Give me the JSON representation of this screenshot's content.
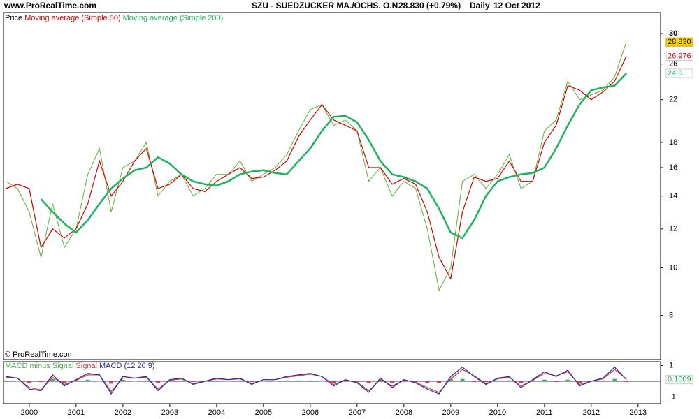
{
  "header": {
    "site": "www.ProRealTime.com",
    "symbol": "SZU - SUEDZUCKER MA./OCHS. O.N.",
    "quote": "28.830 (+0.79%)",
    "period": "Daily",
    "date": "12 Oct 2012",
    "watermark": "© ProRealTime.com"
  },
  "chart_data": [
    {
      "type": "line",
      "log_scale": true,
      "grid": false,
      "x": [
        1999.5,
        1999.75,
        2000,
        2000.25,
        2000.5,
        2000.75,
        2001,
        2001.25,
        2001.5,
        2001.75,
        2002,
        2002.25,
        2002.5,
        2002.75,
        2003,
        2003.25,
        2003.5,
        2003.75,
        2004,
        2004.25,
        2004.5,
        2004.75,
        2005,
        2005.25,
        2005.5,
        2005.75,
        2006,
        2006.25,
        2006.5,
        2006.75,
        2007,
        2007.25,
        2007.5,
        2007.75,
        2008,
        2008.25,
        2008.5,
        2008.75,
        2009,
        2009.25,
        2009.5,
        2009.75,
        2010,
        2010.25,
        2010.5,
        2010.75,
        2011,
        2011.25,
        2011.5,
        2011.75,
        2012,
        2012.25,
        2012.5,
        2012.75
      ],
      "xlim": [
        1999.45,
        2013.48
      ],
      "xticks": [
        2000,
        2001,
        2002,
        2003,
        2004,
        2005,
        2006,
        2007,
        2008,
        2009,
        2010,
        2011,
        2012,
        2013
      ],
      "ylim": [
        6.5,
        33.1
      ],
      "yticks": [
        8,
        10,
        12,
        14,
        16,
        18,
        22,
        26,
        30
      ],
      "series": [
        {
          "name": "Price",
          "color": "#5fae3a",
          "width": 1,
          "last_label": "28.830",
          "values": [
            15,
            14.5,
            13,
            10.5,
            13.5,
            11,
            12,
            15.5,
            17.5,
            13,
            16,
            16.5,
            18,
            14,
            15,
            15.5,
            14,
            14.5,
            15.5,
            15.5,
            16.5,
            15,
            15.5,
            16,
            17,
            19,
            21,
            21.5,
            19.5,
            20,
            19,
            15,
            16,
            14,
            15,
            14.5,
            12,
            9,
            10,
            15,
            15.5,
            14.5,
            15.5,
            17,
            14.5,
            15,
            19,
            20,
            24,
            22,
            22.5,
            23,
            24.5,
            28.83
          ]
        },
        {
          "name": "Moving average (Simple 50)",
          "color": "#d40000",
          "width": 1.2,
          "values": [
            14.5,
            14.8,
            14.5,
            11,
            12,
            11.5,
            12,
            13.5,
            16.5,
            14,
            15,
            16.5,
            17.5,
            14.5,
            14.8,
            15.5,
            14.5,
            14.3,
            15,
            15.5,
            16,
            15.2,
            15.3,
            15.8,
            16.5,
            18.5,
            20,
            21.5,
            20,
            19.5,
            19,
            16,
            16,
            14.8,
            15.2,
            14.8,
            13,
            10.5,
            9.5,
            13,
            15.3,
            15,
            15.2,
            16.5,
            15,
            15,
            18,
            19.5,
            23.5,
            23,
            22,
            22.8,
            24,
            26.976
          ]
        },
        {
          "name": "Moving average (Simple 200)",
          "color": "#1db35e",
          "width": 2.5,
          "values": [
            null,
            null,
            null,
            13.8,
            13,
            12.3,
            11.8,
            12.5,
            13.5,
            14.5,
            15.2,
            15.8,
            16,
            16.8,
            16.3,
            15.5,
            15,
            14.8,
            14.7,
            15,
            15.5,
            15.7,
            15.8,
            15.6,
            15.5,
            16.5,
            17.5,
            19,
            20.3,
            20.4,
            19.8,
            18.2,
            16.5,
            15.5,
            15.3,
            15,
            14.5,
            13.2,
            11.8,
            11.5,
            12.5,
            14,
            15,
            15.3,
            15.5,
            15.6,
            16,
            17.5,
            19.5,
            21.5,
            23,
            23.3,
            23.5,
            24.9
          ]
        }
      ]
    },
    {
      "type": "line",
      "log_scale": false,
      "x": [
        1999.5,
        1999.75,
        2000,
        2000.25,
        2000.5,
        2000.75,
        2001,
        2001.25,
        2001.5,
        2001.75,
        2002,
        2002.25,
        2002.5,
        2002.75,
        2003,
        2003.25,
        2003.5,
        2003.75,
        2004,
        2004.25,
        2004.5,
        2004.75,
        2005,
        2005.25,
        2005.5,
        2005.75,
        2006,
        2006.25,
        2006.5,
        2006.75,
        2007,
        2007.25,
        2007.5,
        2007.75,
        2008,
        2008.25,
        2008.5,
        2008.75,
        2009,
        2009.25,
        2009.5,
        2009.75,
        2010,
        2010.25,
        2010.5,
        2010.75,
        2011,
        2011.25,
        2011.5,
        2011.75,
        2012,
        2012.25,
        2012.5,
        2012.75
      ],
      "xlim": [
        1999.45,
        2013.48
      ],
      "ylim": [
        -1.42,
        1.24
      ],
      "yticks": [
        1,
        -1
      ],
      "series": [
        {
          "name": "MACD minus Signal",
          "color": "#4caf50",
          "style": "bar",
          "values": [
            0.05,
            0,
            -0.1,
            -0.05,
            0.15,
            -0.1,
            0.05,
            0.1,
            0,
            -0.15,
            0.1,
            0,
            0.05,
            -0.1,
            0.05,
            0.05,
            -0.05,
            0,
            0.05,
            0,
            0.05,
            -0.05,
            0,
            0,
            0.05,
            0.05,
            0.05,
            0,
            -0.1,
            0.05,
            -0.05,
            -0.1,
            0.1,
            -0.1,
            0.05,
            -0.05,
            -0.1,
            -0.1,
            0.15,
            0.15,
            -0.05,
            -0.05,
            0.05,
            0.05,
            -0.1,
            0.05,
            0.1,
            -0.05,
            0.1,
            -0.1,
            0,
            0.05,
            0.15,
            -0.05
          ]
        },
        {
          "name": "Signal",
          "color": "#d04040",
          "style": "line",
          "values": [
            0.25,
            0.2,
            -0.4,
            -0.55,
            0.25,
            -0.2,
            0.05,
            0.4,
            0.4,
            -0.65,
            0.2,
            0.2,
            0.25,
            -0.5,
            0.05,
            0.15,
            -0.15,
            0,
            0.15,
            0.1,
            0.15,
            -0.15,
            0.1,
            0.1,
            0.25,
            0.35,
            0.45,
            0.3,
            -0.2,
            0.05,
            -0.05,
            -0.6,
            0.1,
            -0.3,
            0.05,
            -0.05,
            -0.4,
            -0.7,
            0.15,
            0.75,
            0.35,
            -0.15,
            0.15,
            0.25,
            -0.3,
            0.05,
            0.5,
            0.35,
            0.6,
            -0.2,
            0,
            0.15,
            0.75,
            0.15
          ]
        },
        {
          "name": "MACD (12 26 9)",
          "color": "#2a2aa0",
          "style": "line",
          "last": true,
          "values": [
            0.3,
            0.2,
            -0.5,
            -0.6,
            0.4,
            -0.3,
            0.1,
            0.5,
            0.4,
            -0.8,
            0.3,
            0.2,
            0.3,
            -0.6,
            0.1,
            0.2,
            -0.2,
            0,
            0.2,
            0.1,
            0.2,
            -0.2,
            0.1,
            0.1,
            0.3,
            0.4,
            0.5,
            0.3,
            -0.3,
            0.1,
            -0.1,
            -0.7,
            0.2,
            -0.4,
            0.1,
            -0.1,
            -0.5,
            -0.8,
            0.3,
            0.9,
            0.3,
            -0.2,
            0.2,
            0.3,
            -0.4,
            0.1,
            0.6,
            0.3,
            0.7,
            -0.3,
            0,
            0.2,
            0.9,
            0.1009
          ]
        }
      ]
    }
  ]
}
